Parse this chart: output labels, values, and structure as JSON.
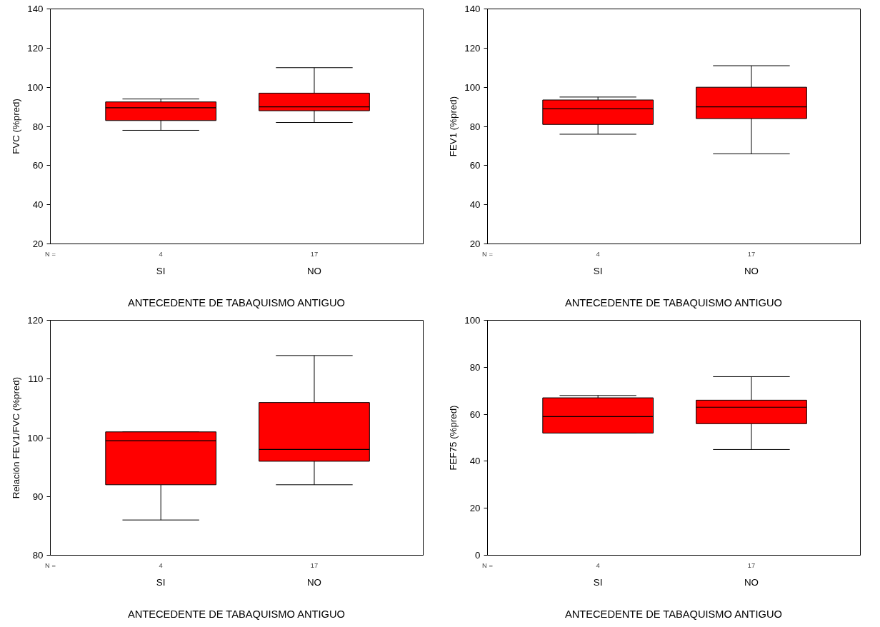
{
  "chart_data": [
    {
      "type": "box",
      "ylabel": "FVC (%pred)",
      "xlabel": "ANTECEDENTE DE TABAQUISMO ANTIGUO",
      "categories": [
        "SI",
        "NO"
      ],
      "color": "#ff0000",
      "ylim": [
        20,
        140
      ],
      "yticks": [
        20,
        40,
        60,
        80,
        100,
        120,
        140
      ],
      "grid": false,
      "annotations": [
        "N =",
        "4",
        "17"
      ],
      "boxes": [
        {
          "low": 78,
          "q1": 83,
          "median": 89.5,
          "q3": 92.5,
          "high": 94
        },
        {
          "low": 82,
          "q1": 88,
          "median": 90,
          "q3": 97,
          "high": 110
        }
      ]
    },
    {
      "type": "box",
      "ylabel": "FEV1 (%pred)",
      "xlabel": "ANTECEDENTE DE TABAQUISMO ANTIGUO",
      "categories": [
        "SI",
        "NO"
      ],
      "color": "#ff0000",
      "ylim": [
        20,
        140
      ],
      "yticks": [
        20,
        40,
        60,
        80,
        100,
        120,
        140
      ],
      "grid": false,
      "annotations": [
        "N =",
        "4",
        "17"
      ],
      "boxes": [
        {
          "low": 76,
          "q1": 81,
          "median": 89,
          "q3": 93.5,
          "high": 95
        },
        {
          "low": 66,
          "q1": 84,
          "median": 90,
          "q3": 100,
          "high": 111
        }
      ]
    },
    {
      "type": "box",
      "ylabel": "Relación FEV1/FVC (%pred)",
      "xlabel": "ANTECEDENTE DE TABAQUISMO ANTIGUO",
      "categories": [
        "SI",
        "NO"
      ],
      "color": "#ff0000",
      "ylim": [
        80,
        120
      ],
      "yticks": [
        80,
        90,
        100,
        110,
        120
      ],
      "grid": false,
      "annotations": [
        "N =",
        "4",
        "17"
      ],
      "boxes": [
        {
          "low": 86,
          "q1": 92,
          "median": 99.5,
          "q3": 101,
          "high": 101
        },
        {
          "low": 92,
          "q1": 96,
          "median": 98,
          "q3": 106,
          "high": 114
        }
      ]
    },
    {
      "type": "box",
      "ylabel": "FEF75 (%pred)",
      "xlabel": "ANTECEDENTE DE TABAQUISMO ANTIGUO",
      "categories": [
        "SI",
        "NO"
      ],
      "color": "#ff0000",
      "ylim": [
        0,
        100
      ],
      "yticks": [
        0,
        20,
        40,
        60,
        80,
        100
      ],
      "grid": false,
      "annotations": [
        "N =",
        "4",
        "17"
      ],
      "boxes": [
        {
          "low": 52,
          "q1": 52,
          "median": 59,
          "q3": 67,
          "high": 68
        },
        {
          "low": 45,
          "q1": 56,
          "median": 63,
          "q3": 66,
          "high": 76
        }
      ]
    }
  ]
}
